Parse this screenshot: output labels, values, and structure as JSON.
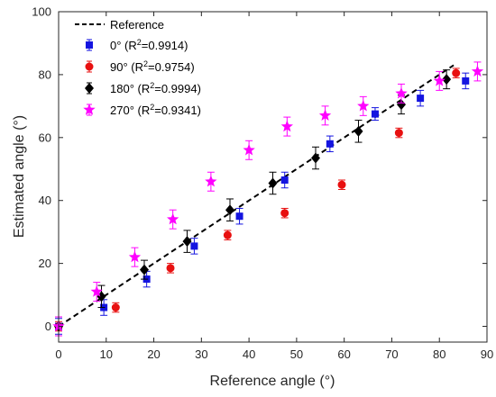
{
  "chart_data": {
    "type": "scatter",
    "xlabel": "Reference angle (°)",
    "ylabel": "Estimated angle (°)",
    "xlim": [
      0,
      90
    ],
    "ylim": [
      -5,
      100
    ],
    "xticks": [
      "0",
      "10",
      "20",
      "30",
      "40",
      "50",
      "60",
      "70",
      "80",
      "90"
    ],
    "yticks": [
      "0",
      "20",
      "40",
      "60",
      "80",
      "100"
    ],
    "grid": false,
    "legend_placement": "top-left",
    "reference_line": {
      "label": "Reference",
      "x": [
        0,
        83
      ],
      "y": [
        0,
        83
      ],
      "color": "#000000",
      "style": "dashed"
    },
    "series": [
      {
        "name": "0°",
        "r2_prefix": " (R",
        "r2_suffix": "=0.9914)",
        "marker": "square",
        "color": "#1414e0",
        "x": [
          0,
          9.5,
          18.5,
          28.5,
          38,
          47.5,
          57,
          66.5,
          76,
          85.5
        ],
        "y": [
          0,
          6,
          15,
          25.5,
          35,
          46.5,
          58,
          67.5,
          72.5,
          78
        ],
        "err": [
          2.5,
          2.5,
          2.5,
          2.5,
          2.5,
          2.5,
          2.5,
          2,
          2.5,
          2.5
        ]
      },
      {
        "name": "90°",
        "r2_prefix": " (R",
        "r2_suffix": "=0.9754)",
        "marker": "circle",
        "color": "#e81010",
        "x": [
          0,
          12,
          23.5,
          35.5,
          47.5,
          59.5,
          71.5,
          83.5
        ],
        "y": [
          0,
          6,
          18.5,
          29,
          36,
          45,
          61.5,
          80.5
        ],
        "err": [
          1.5,
          1.5,
          1.5,
          1.5,
          1.5,
          1.5,
          1.5,
          1.5
        ]
      },
      {
        "name": "180°",
        "r2_prefix": " (R",
        "r2_suffix": "=0.9994)",
        "marker": "diamond",
        "color": "#000000",
        "x": [
          0,
          9,
          18,
          27,
          36,
          45,
          54,
          63,
          72,
          81.5
        ],
        "y": [
          0,
          9.5,
          18,
          27,
          37,
          45.5,
          53.5,
          62,
          70.5,
          78.5
        ],
        "err": [
          3,
          3.5,
          3,
          3.5,
          3.5,
          3.5,
          3.5,
          3.5,
          3,
          3
        ]
      },
      {
        "name": "270°",
        "r2_prefix": " (R",
        "r2_suffix": "=0.9341)",
        "marker": "star",
        "color": "#ff00ff",
        "x": [
          0,
          8,
          16,
          24,
          32,
          40,
          48,
          56,
          64,
          72,
          80,
          88
        ],
        "y": [
          0,
          11,
          22,
          34,
          46,
          56,
          63.5,
          67,
          70,
          74,
          78,
          81
        ],
        "err": [
          3,
          3,
          3,
          3,
          3,
          3,
          3,
          3,
          3,
          3,
          3,
          3
        ]
      }
    ]
  }
}
